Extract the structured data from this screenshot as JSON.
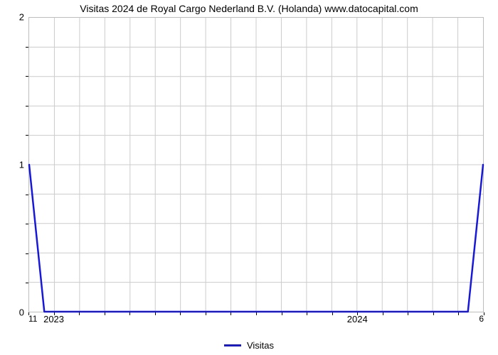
{
  "chart": {
    "type": "line",
    "title": "Visitas 2024 de Royal Cargo Nederland B.V. (Holanda) www.datocapital.com",
    "title_fontsize": 14,
    "title_color": "#000000",
    "background_color": "#ffffff",
    "plot_border_color": "#bdbdbd",
    "grid_color": "#cccccc",
    "line_color": "#1818d8",
    "line_width": 2.5,
    "ylim": [
      0,
      2
    ],
    "yticks": [
      0,
      1,
      2
    ],
    "ytick_labels": [
      "0",
      "1",
      "2"
    ],
    "y_minor_count": 4,
    "x_major_labels": [
      "2023",
      "2024"
    ],
    "x_major_positions_index": [
      1,
      13
    ],
    "x_total_months": 18,
    "x_minor_every": 1,
    "x_left_corner": "11",
    "x_right_corner": "6",
    "data_x_index": [
      0,
      0.6,
      17.4,
      18
    ],
    "data_y": [
      1,
      0,
      0,
      1
    ],
    "legend": {
      "label": "Visitas",
      "position": "bottom-center"
    }
  }
}
